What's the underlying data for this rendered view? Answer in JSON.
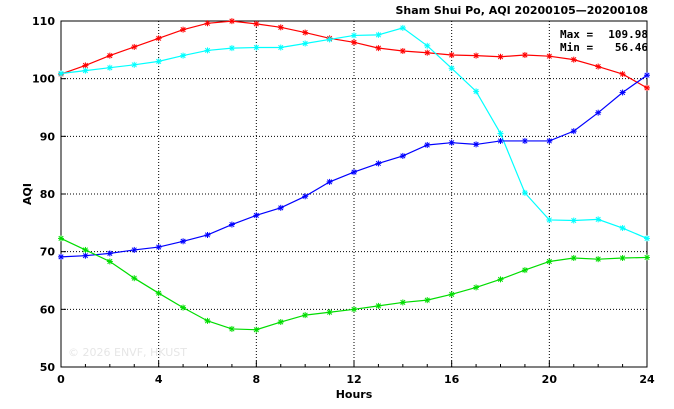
{
  "chart_data": {
    "type": "line",
    "title": "Sham Shui Po, AQI 20200105—20200108",
    "xlabel": "Hours",
    "ylabel": "AQI",
    "xlim": [
      0,
      24
    ],
    "ylim": [
      50,
      110
    ],
    "xticks": [
      0,
      4,
      8,
      12,
      16,
      20,
      24
    ],
    "yticks": [
      50,
      60,
      70,
      80,
      90,
      100,
      110
    ],
    "grid": true,
    "stats": [
      {
        "label": "Max =",
        "value": "109.98"
      },
      {
        "label": "Min =",
        "value": "56.46"
      }
    ],
    "watermark": "© 2026 ENVF, HKUST",
    "x": [
      0,
      1,
      2,
      3,
      4,
      5,
      6,
      7,
      8,
      9,
      10,
      11,
      12,
      13,
      14,
      15,
      16,
      17,
      18,
      19,
      20,
      21,
      22,
      23,
      24
    ],
    "series": [
      {
        "color": "#ff0000",
        "values": [
          100.8,
          102.3,
          104.0,
          105.5,
          107.0,
          108.5,
          109.6,
          109.98,
          109.5,
          108.9,
          108.0,
          107.0,
          106.3,
          105.3,
          104.8,
          104.5,
          104.1,
          104.0,
          103.8,
          104.1,
          103.9,
          103.3,
          102.1,
          100.8,
          98.4
        ]
      },
      {
        "color": "#00ffff",
        "values": [
          100.9,
          101.4,
          101.9,
          102.4,
          103.0,
          104.0,
          104.9,
          105.3,
          105.4,
          105.4,
          106.1,
          106.8,
          107.5,
          107.6,
          108.8,
          105.7,
          101.8,
          97.8,
          90.5,
          80.2,
          75.5,
          75.4,
          75.6,
          74.1,
          72.3
        ]
      },
      {
        "color": "#0000ff",
        "values": [
          69.1,
          69.3,
          69.7,
          70.3,
          70.8,
          71.8,
          72.9,
          74.7,
          76.3,
          77.6,
          79.6,
          82.1,
          83.8,
          85.3,
          86.6,
          88.5,
          88.9,
          88.6,
          89.2,
          89.2,
          89.2,
          90.9,
          94.1,
          97.6,
          100.6
        ]
      },
      {
        "color": "#00dd00",
        "values": [
          72.3,
          70.3,
          68.3,
          65.4,
          62.8,
          60.3,
          58.0,
          56.6,
          56.46,
          57.8,
          59.0,
          59.5,
          60.0,
          60.6,
          61.2,
          61.6,
          62.6,
          63.8,
          65.2,
          66.8,
          68.3,
          68.9,
          68.7,
          68.9,
          69.0
        ]
      }
    ]
  }
}
